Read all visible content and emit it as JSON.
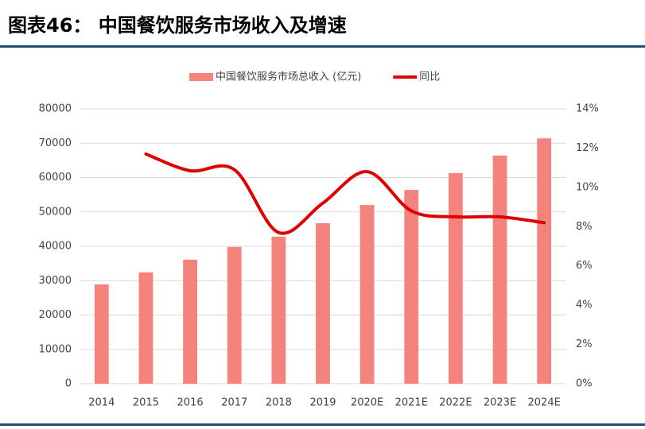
{
  "chart_data": {
    "type": "bar-line",
    "title": "图表46： 中国餐饮服务市场收入及增速",
    "categories": [
      "2014",
      "2015",
      "2016",
      "2017",
      "2018",
      "2019",
      "2020E",
      "2021E",
      "2022E",
      "2023E",
      "2024E"
    ],
    "series": [
      {
        "name": "中国餐饮服务市场总收入 (亿元)",
        "type": "bar",
        "color": "#f4837d",
        "values": [
          28900,
          32400,
          36100,
          39800,
          42800,
          46700,
          52000,
          56400,
          61300,
          66400,
          71400
        ]
      },
      {
        "name": "同比",
        "type": "line",
        "axis": "y2",
        "color": "#e00000",
        "values": [
          null,
          11.7,
          10.85,
          10.9,
          7.7,
          9.2,
          10.8,
          8.8,
          8.5,
          8.5,
          8.2
        ]
      }
    ],
    "ylim": [
      0,
      80000
    ],
    "yticks": [
      0,
      10000,
      20000,
      30000,
      40000,
      50000,
      60000,
      70000,
      80000
    ],
    "y2lim": [
      0,
      14
    ],
    "y2ticks": [
      {
        "value": 0,
        "label": "0%"
      },
      {
        "value": 2,
        "label": "2%"
      },
      {
        "value": 4,
        "label": "4%"
      },
      {
        "value": 6,
        "label": "6%"
      },
      {
        "value": 8,
        "label": "8%"
      },
      {
        "value": 10,
        "label": "10%"
      },
      {
        "value": 12,
        "label": "12%"
      },
      {
        "value": 14,
        "label": "14%"
      }
    ],
    "grid": true,
    "legend": "top"
  }
}
